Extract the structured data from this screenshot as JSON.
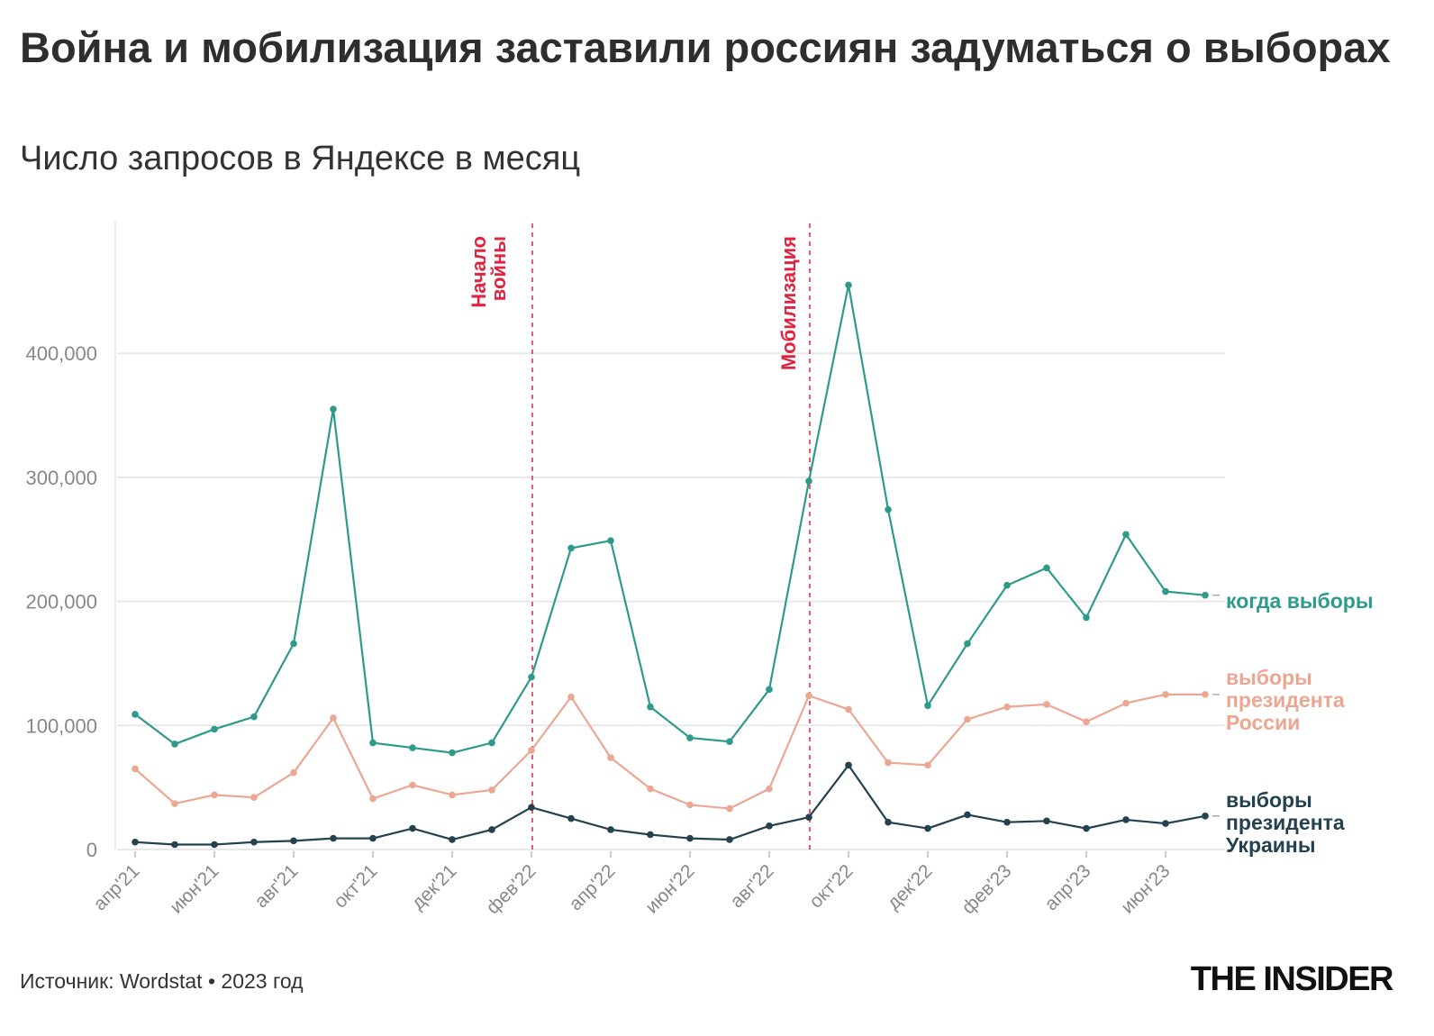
{
  "title": "Война и мобилизация заставили россиян задуматься о выборах",
  "subtitle": "Число запросов в Яндексе в месяц",
  "source": "Источник: Wordstat • 2023 год",
  "logo": "THE INSIDER",
  "chart_data": {
    "type": "line",
    "title": "Война и мобилизация заставили россиян задуматься о выборах",
    "subtitle": "Число запросов в Яндексе в месяц",
    "xlabel": "",
    "ylabel": "",
    "ylim": [
      0,
      470000
    ],
    "grid": true,
    "legend": "direct labels at right end of lines",
    "x": [
      "апр'21",
      "май'21",
      "июн'21",
      "июл'21",
      "авг'21",
      "сен'21",
      "окт'21",
      "ноя'21",
      "дек'21",
      "янв'22",
      "фев'22",
      "мар'22",
      "апр'22",
      "май'22",
      "июн'22",
      "июл'22",
      "авг'22",
      "сен'22",
      "окт'22",
      "ноя'22",
      "дек'22",
      "янв'23",
      "фев'23",
      "мар'23",
      "апр'23",
      "май'23",
      "июн'23",
      "июл'23"
    ],
    "x_tick_labels": [
      "апр'21",
      "июн'21",
      "авг'21",
      "окт'21",
      "дек'21",
      "фев'22",
      "апр'22",
      "июн'22",
      "авг'22",
      "окт'22",
      "дек'22",
      "фев'23",
      "апр'23",
      "июн'23"
    ],
    "y_ticks": [
      0,
      100000,
      200000,
      300000,
      400000
    ],
    "y_tick_labels": [
      "0",
      "100,000",
      "200,000",
      "300,000",
      "400,000"
    ],
    "series": [
      {
        "name": "когда выборы",
        "color": "#2e9a8b",
        "values": [
          109000,
          85000,
          97000,
          107000,
          166000,
          355000,
          86000,
          82000,
          78000,
          86000,
          139000,
          243000,
          249000,
          115000,
          90000,
          87000,
          129000,
          297000,
          455000,
          274000,
          116000,
          166000,
          213000,
          227000,
          187000,
          254000,
          208000,
          205000
        ]
      },
      {
        "name": "выборы президента России",
        "color": "#eba792",
        "values": [
          65000,
          37000,
          44000,
          42000,
          62000,
          106000,
          41000,
          52000,
          44000,
          48000,
          80000,
          123000,
          74000,
          49000,
          36000,
          33000,
          49000,
          124000,
          113000,
          70000,
          68000,
          105000,
          115000,
          117000,
          103000,
          118000,
          125000,
          125000
        ]
      },
      {
        "name": "выборы президента Украины",
        "color": "#24414f",
        "values": [
          6000,
          4000,
          4000,
          6000,
          7000,
          9000,
          9000,
          17000,
          8000,
          16000,
          34000,
          25000,
          16000,
          12000,
          9000,
          8000,
          19000,
          26000,
          68000,
          22000,
          17000,
          28000,
          22000,
          23000,
          17000,
          24000,
          21000,
          27000
        ]
      }
    ],
    "annotations": [
      {
        "x": "фев'22",
        "label": "Начало войны",
        "lines": [
          "Начало",
          "войны"
        ],
        "color": "#e0243f"
      },
      {
        "x": "сен'22",
        "label": "Мобилизация",
        "lines": [
          "Мобилизация"
        ],
        "color": "#e0243f"
      }
    ],
    "series_label_lines": [
      [
        "когда выборы"
      ],
      [
        "выборы",
        "президента",
        "России"
      ],
      [
        "выборы",
        "президента",
        "Украины"
      ]
    ]
  }
}
